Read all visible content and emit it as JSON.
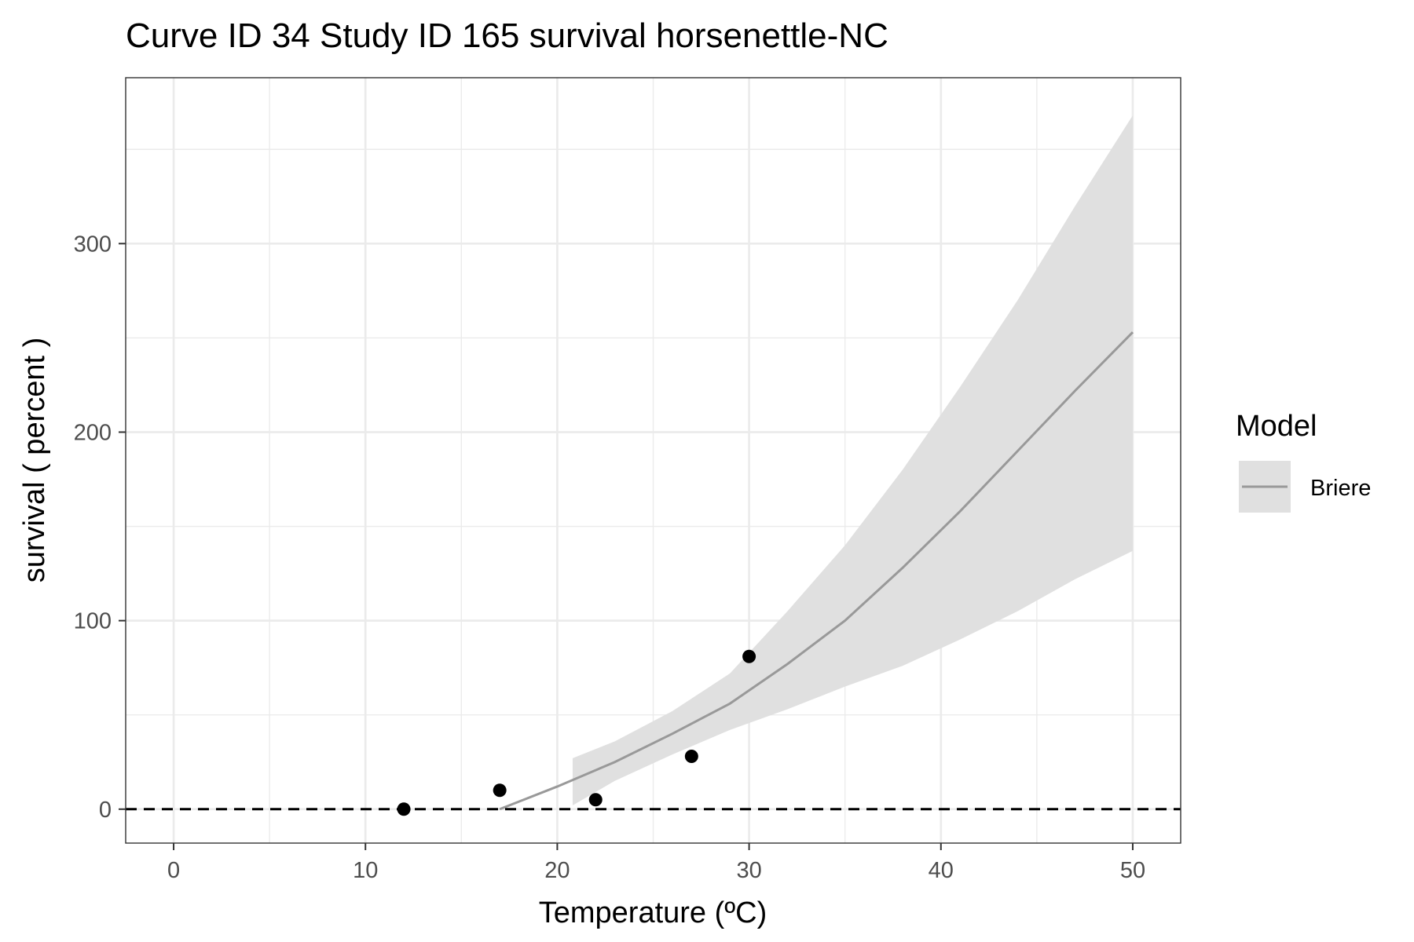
{
  "chart_data": {
    "type": "scatter",
    "title": "Curve ID 34 Study ID 165 survival horsenettle-NC",
    "xlabel": "Temperature (ºC)",
    "ylabel": "survival ( percent )",
    "xlim": [
      -2.5,
      52.5
    ],
    "ylim": [
      -18,
      388
    ],
    "x_ticks": [
      0,
      10,
      20,
      30,
      40,
      50
    ],
    "y_ticks": [
      0,
      100,
      200,
      300
    ],
    "grid": true,
    "legend_position": "right",
    "legend_title": "Model",
    "series": [
      {
        "kind": "points",
        "color": "#000000",
        "points": [
          {
            "x": 12,
            "y": 0
          },
          {
            "x": 17,
            "y": 10
          },
          {
            "x": 22,
            "y": 5
          },
          {
            "x": 27,
            "y": 28
          },
          {
            "x": 30,
            "y": 81
          }
        ]
      },
      {
        "kind": "line",
        "name": "Briere",
        "color": "#999999",
        "x": [
          17,
          20,
          23,
          26,
          29,
          32,
          35,
          38,
          41,
          44,
          47,
          50
        ],
        "y": [
          0,
          12,
          25,
          40,
          56,
          77,
          100,
          128,
          158,
          190,
          222,
          253
        ]
      },
      {
        "kind": "ribbon",
        "color": "#e0e0e0",
        "x": [
          20.8,
          23,
          26,
          29,
          32,
          35,
          38,
          41,
          44,
          47,
          50
        ],
        "lower": [
          2,
          15,
          29,
          42,
          53,
          65,
          76,
          90,
          105,
          122,
          137
        ],
        "upper": [
          27,
          36,
          52,
          72,
          105,
          140,
          180,
          224,
          270,
          320,
          368
        ]
      },
      {
        "kind": "reference-line",
        "style": "dashed",
        "color": "#000000",
        "y": 0
      }
    ]
  }
}
